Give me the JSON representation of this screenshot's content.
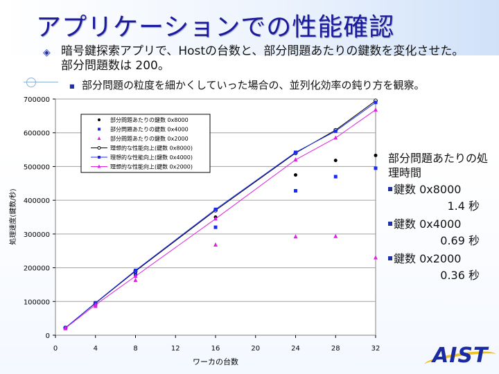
{
  "slide": {
    "title": "アプリケーションでの性能確認",
    "bullet1": "暗号鍵探索アプリで、Hostの台数と、部分問題あたりの鍵数を変化させた。部分問題数は 200。",
    "bullet2": "部分問題の粒度を細かくしていった場合の、並列化効率の鈍り方を観察。",
    "logo_text": "AIST"
  },
  "side_panel": {
    "heading": "部分問題あたりの処理時間",
    "items": [
      {
        "label": "鍵数 0x8000",
        "value": "1.4 秒"
      },
      {
        "label": "鍵数 0x4000",
        "value": "0.69 秒"
      },
      {
        "label": "鍵数 0x2000",
        "value": "0.36 秒"
      }
    ]
  },
  "colors": {
    "title": "#1a1a9a",
    "black": "#000000",
    "blue": "#1a2af0",
    "magenta": "#e020e0"
  },
  "chart_data": {
    "type": "scatter",
    "xlabel": "ワーカの台数",
    "ylabel": "処理速度(鍵数/秒)",
    "xlim": [
      0,
      32
    ],
    "ylim": [
      0,
      700000
    ],
    "xticks": [
      "0",
      "4",
      "8",
      "12",
      "16",
      "20",
      "24",
      "28",
      "32"
    ],
    "yticks": [
      "0",
      "100000",
      "200000",
      "300000",
      "400000",
      "500000",
      "600000",
      "700000"
    ],
    "grid": "horizontal",
    "legend_position": "top-left",
    "x": [
      1,
      4,
      8,
      16,
      24,
      28,
      32
    ],
    "series": [
      {
        "name": "部分問題あたりの鍵数 0x8000",
        "kind": "points",
        "marker": "circle",
        "color": "#000000",
        "values": [
          22000,
          90000,
          185000,
          350000,
          475000,
          518000,
          533000
        ]
      },
      {
        "name": "部分問題あたりの鍵数 0x4000",
        "kind": "points",
        "marker": "square",
        "color": "#1a2af0",
        "values": [
          22000,
          90000,
          180000,
          320000,
          428000,
          470000,
          495000
        ]
      },
      {
        "name": "部分問題あたりの鍵数 0x2000",
        "kind": "points",
        "marker": "triangle",
        "color": "#e020e0",
        "values": [
          20000,
          86000,
          163000,
          268000,
          292000,
          293000,
          230000
        ]
      },
      {
        "name": "理想的な性能向上(鍵数 0x8000)",
        "kind": "line",
        "marker": "circle-open",
        "color": "#000000",
        "values": [
          22000,
          95000,
          190000,
          370000,
          540000,
          608000,
          695000
        ]
      },
      {
        "name": "理想的な性能向上(鍵数 0x4000)",
        "kind": "line",
        "marker": "square",
        "color": "#1a2af0",
        "values": [
          22000,
          96000,
          192000,
          373000,
          542000,
          605000,
          690000
        ]
      },
      {
        "name": "理想的な性能向上(鍵数 0x2000)",
        "kind": "line",
        "marker": "triangle",
        "color": "#e020e0",
        "values": [
          21000,
          90000,
          175000,
          345000,
          520000,
          585000,
          668000
        ]
      }
    ]
  }
}
